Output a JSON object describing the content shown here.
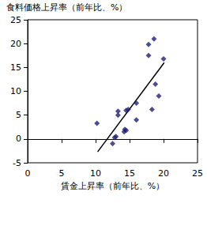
{
  "chart_data": {
    "type": "scatter",
    "xlabel": "賃金上昇率（前年比、%）",
    "ylabel": "食料価格上昇率（前年比、%）",
    "xlim": [
      0,
      25
    ],
    "xticks": [
      0,
      5,
      10,
      15,
      20,
      25
    ],
    "ylim": [
      -5,
      25
    ],
    "yticks": [
      -5,
      0,
      5,
      10,
      15,
      20,
      25
    ],
    "grid": false,
    "series": [
      {
        "type": "scatter",
        "color": "#1f1f7a",
        "marker": "diamond",
        "x": [
          10.2,
          12.5,
          12.8,
          13.0,
          13.3,
          13.3,
          14.2,
          14.3,
          14.5,
          14.5,
          14.8,
          16.0,
          16.0,
          17.8,
          17.8,
          18.3,
          18.6,
          18.8,
          19.3,
          20.0
        ],
        "values": [
          3.3,
          -1.0,
          0.3,
          0.5,
          5.0,
          5.8,
          1.5,
          2.0,
          1.8,
          6.0,
          6.2,
          4.0,
          7.5,
          17.5,
          19.8,
          6.2,
          21.0,
          11.5,
          9.0,
          16.8
        ]
      },
      {
        "type": "line",
        "color": "#000000",
        "line_style": "solid",
        "x": [
          10.3,
          20.1
        ],
        "values": [
          -2.7,
          16.0
        ]
      }
    ]
  }
}
